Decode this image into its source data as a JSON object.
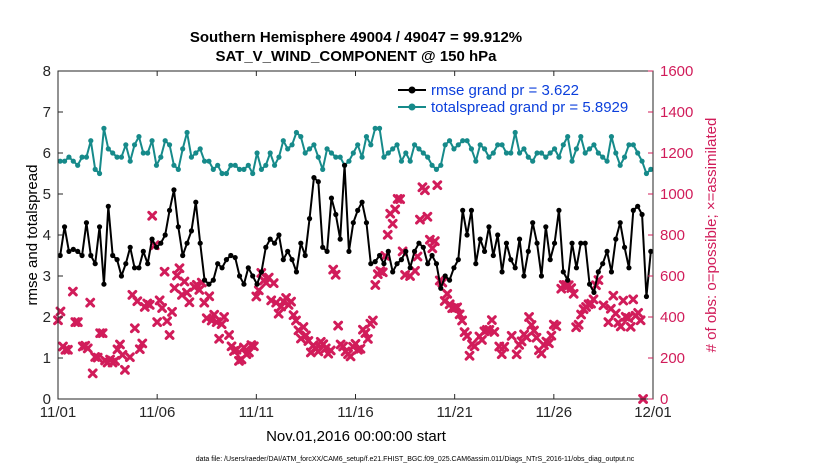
{
  "chart_data": {
    "type": "line",
    "title": [
      "Southern Hemisphere 49004 / 49047 = 99.912%",
      "SAT_V_WIND_COMPONENT @ 150 hPa"
    ],
    "xlabel": "Nov.01,2016 00:00:00 start",
    "ylabel_left": "rmse and totalspread",
    "ylabel_right": "# of obs: o=possible; ×=assimilated",
    "footnote": "data file: /Users/raeder/DAI/ATM_forcXX/CAM6_setup/f.e21.FHIST_BGC.f09_025.CAM6assim.011/Diags_NTrS_2016-11/obs_diag_output.nc",
    "xlim": [
      0,
      30
    ],
    "x_ticks": [
      {
        "pos": 0,
        "label": "11/01"
      },
      {
        "pos": 5,
        "label": "11/06"
      },
      {
        "pos": 10,
        "label": "11/11"
      },
      {
        "pos": 15,
        "label": "11/16"
      },
      {
        "pos": 20,
        "label": "11/21"
      },
      {
        "pos": 25,
        "label": "11/26"
      },
      {
        "pos": 30,
        "label": "12/01"
      }
    ],
    "ylim_left": [
      0,
      8
    ],
    "yticks_left": [
      "0",
      "1",
      "2",
      "3",
      "4",
      "5",
      "6",
      "7",
      "8"
    ],
    "ylim_right": [
      0,
      1600
    ],
    "yticks_right": [
      "0",
      "200",
      "400",
      "600",
      "800",
      "1000",
      "1200",
      "1400",
      "1600"
    ],
    "legend": [
      {
        "label": "rmse grand pr = 3.622",
        "color": "#000000"
      },
      {
        "label": "totalspread grand pr = 5.8929",
        "color": "#168a8a"
      }
    ],
    "colors": {
      "rmse": "#000000",
      "totalspread": "#168a8a",
      "obs": "#d11c5a",
      "legend_text": "#0b3fdc"
    },
    "series_rmse": [
      3.5,
      4.2,
      3.6,
      3.65,
      3.6,
      3.5,
      4.3,
      3.5,
      3.3,
      4.2,
      2.8,
      4.7,
      3.5,
      3.4,
      3.0,
      3.3,
      3.7,
      3.2,
      3.2,
      3.6,
      3.3,
      3.9,
      3.7,
      3.8,
      4.0,
      4.6,
      5.1,
      4.2,
      3.5,
      3.8,
      4.1,
      4.8,
      3.8,
      2.9,
      2.8,
      2.9,
      3.3,
      3.2,
      3.4,
      3.5,
      3.45,
      3.0,
      2.8,
      3.2,
      3.0,
      2.8,
      3.1,
      3.7,
      3.9,
      3.8,
      4.0,
      3.4,
      3.6,
      3.4,
      3.1,
      3.8,
      3.5,
      4.4,
      5.4,
      5.3,
      3.7,
      3.6,
      4.9,
      4.5,
      3.9,
      5.7,
      3.6,
      4.3,
      4.6,
      4.8,
      4.3,
      3.3,
      3.35,
      3.5,
      3.3,
      3.6,
      3.1,
      3.3,
      3.4,
      3.6,
      3.2,
      3.6,
      3.8,
      3.7,
      3.3,
      3.5,
      3.3,
      2.7,
      3.0,
      2.9,
      3.2,
      3.4,
      4.6,
      4.0,
      4.6,
      3.3,
      3.9,
      3.6,
      4.2,
      3.5,
      4.0,
      3.1,
      3.8,
      3.4,
      3.2,
      3.9,
      3.0,
      3.6,
      4.3,
      3.8,
      3.0,
      4.2,
      3.4,
      3.8,
      4.6,
      3.1,
      2.9,
      3.8,
      3.2,
      3.8,
      3.8,
      2.8,
      2.6,
      3.1,
      3.3,
      3.6,
      3.1,
      3.9,
      4.3,
      3.7,
      3.2,
      4.6,
      4.7,
      4.5,
      2.5,
      3.6
    ],
    "series_totalspread": [
      5.8,
      5.8,
      5.9,
      5.8,
      5.7,
      5.9,
      5.9,
      6.3,
      5.6,
      5.5,
      6.6,
      6.1,
      6.0,
      5.9,
      5.9,
      6.2,
      5.8,
      6.2,
      6.4,
      6.0,
      6.0,
      6.3,
      5.7,
      5.9,
      6.3,
      6.2,
      5.7,
      5.6,
      6.1,
      6.5,
      5.9,
      6.0,
      6.1,
      5.8,
      5.8,
      5.6,
      5.7,
      5.5,
      5.5,
      5.7,
      5.7,
      5.6,
      5.6,
      5.7,
      5.5,
      6.0,
      5.6,
      5.7,
      6.0,
      5.7,
      5.9,
      6.3,
      6.1,
      6.2,
      6.5,
      6.4,
      6.0,
      6.1,
      6.2,
      5.9,
      5.6,
      6.1,
      6.0,
      5.9,
      5.9,
      5.7,
      5.8,
      6.0,
      6.2,
      5.9,
      6.4,
      6.2,
      6.6,
      6.6,
      5.9,
      6.0,
      6.1,
      6.2,
      5.8,
      6.0,
      5.8,
      6.2,
      6.1,
      6.0,
      5.9,
      5.7,
      5.6,
      5.7,
      6.2,
      6.3,
      6.1,
      6.2,
      6.3,
      6.3,
      6.1,
      5.8,
      6.2,
      6.1,
      5.9,
      6.0,
      6.2,
      6.2,
      6.0,
      6.0,
      6.5,
      6.0,
      6.1,
      5.9,
      5.8,
      6.0,
      6.0,
      5.9,
      6.0,
      6.1,
      5.9,
      6.2,
      6.4,
      5.8,
      6.1,
      6.4,
      6.0,
      6.1,
      6.2,
      6.0,
      5.9,
      5.8,
      6.4,
      6.0,
      5.7,
      5.9,
      6.2,
      6.2,
      6.0,
      5.8,
      5.5,
      5.6
    ],
    "obs_assimilated": [
      [
        0.0,
        384
      ],
      [
        0.125,
        427
      ],
      [
        0.25,
        256
      ],
      [
        0.375,
        240
      ],
      [
        0.5,
        240
      ],
      [
        0.75,
        524
      ],
      [
        0.875,
        375
      ],
      [
        1.0,
        375
      ],
      [
        1.25,
        256
      ],
      [
        1.375,
        260
      ],
      [
        1.5,
        247
      ],
      [
        1.625,
        470
      ],
      [
        1.75,
        125
      ],
      [
        1.875,
        205
      ],
      [
        2.0,
        202
      ],
      [
        2.125,
        321
      ],
      [
        2.25,
        321
      ],
      [
        2.375,
        188
      ],
      [
        2.5,
        178
      ],
      [
        2.625,
        192
      ],
      [
        2.75,
        178
      ],
      [
        2.875,
        186
      ],
      [
        3.0,
        242
      ],
      [
        3.125,
        266
      ],
      [
        3.25,
        215
      ],
      [
        3.375,
        142
      ],
      [
        3.625,
        204
      ],
      [
        3.75,
        508
      ],
      [
        3.875,
        345
      ],
      [
        4.0,
        477
      ],
      [
        4.125,
        243
      ],
      [
        4.25,
        271
      ],
      [
        4.375,
        449
      ],
      [
        4.5,
        466
      ],
      [
        4.625,
        459
      ],
      [
        4.75,
        894
      ],
      [
        4.875,
        750
      ],
      [
        5.0,
        375
      ],
      [
        5.125,
        481
      ],
      [
        5.25,
        444
      ],
      [
        5.375,
        621
      ],
      [
        5.5,
        380
      ],
      [
        5.625,
        312
      ],
      [
        5.75,
        425
      ],
      [
        5.875,
        541
      ],
      [
        6.0,
        602
      ],
      [
        6.125,
        638
      ],
      [
        6.25,
        508
      ],
      [
        6.375,
        573
      ],
      [
        6.5,
        519
      ],
      [
        6.625,
        472
      ],
      [
        6.875,
        547
      ],
      [
        7.0,
        557
      ],
      [
        7.125,
        532
      ],
      [
        7.25,
        568
      ],
      [
        7.375,
        470
      ],
      [
        7.5,
        394
      ],
      [
        7.625,
        501
      ],
      [
        7.75,
        383
      ],
      [
        7.875,
        411
      ],
      [
        8.0,
        375
      ],
      [
        8.125,
        294
      ],
      [
        8.25,
        365
      ],
      [
        8.375,
        400
      ],
      [
        8.625,
        312
      ],
      [
        8.75,
        257
      ],
      [
        8.875,
        234
      ],
      [
        9.0,
        240
      ],
      [
        9.125,
        186
      ],
      [
        9.25,
        193
      ],
      [
        9.375,
        251
      ],
      [
        9.5,
        219
      ],
      [
        9.625,
        227
      ],
      [
        9.75,
        263
      ],
      [
        9.875,
        257
      ],
      [
        10.0,
        500
      ],
      [
        10.125,
        530
      ],
      [
        10.25,
        615
      ],
      [
        10.375,
        578
      ],
      [
        10.5,
        567
      ],
      [
        10.625,
        592
      ],
      [
        10.75,
        481
      ],
      [
        10.875,
        565
      ],
      [
        11.0,
        470
      ],
      [
        11.125,
        416
      ],
      [
        11.25,
        451
      ],
      [
        11.375,
        475
      ],
      [
        11.5,
        493
      ],
      [
        11.625,
        459
      ],
      [
        11.75,
        475
      ],
      [
        11.875,
        409
      ],
      [
        12.0,
        383
      ],
      [
        12.125,
        335
      ],
      [
        12.25,
        295
      ],
      [
        12.375,
        351
      ],
      [
        12.5,
        310
      ],
      [
        12.625,
        283
      ],
      [
        12.75,
        227
      ],
      [
        12.875,
        262
      ],
      [
        13.0,
        245
      ],
      [
        13.125,
        232
      ],
      [
        13.25,
        279
      ],
      [
        13.375,
        267
      ],
      [
        13.5,
        247
      ],
      [
        13.625,
        221
      ],
      [
        13.75,
        237
      ],
      [
        13.875,
        631
      ],
      [
        14.0,
        606
      ],
      [
        14.125,
        358
      ],
      [
        14.25,
        266
      ],
      [
        14.375,
        256
      ],
      [
        14.5,
        232
      ],
      [
        14.625,
        219
      ],
      [
        14.75,
        208
      ],
      [
        14.875,
        255
      ],
      [
        15.0,
        269
      ],
      [
        15.125,
        240
      ],
      [
        15.25,
        245
      ],
      [
        15.375,
        338
      ],
      [
        15.5,
        322
      ],
      [
        15.625,
        293
      ],
      [
        15.75,
        367
      ],
      [
        15.875,
        383
      ],
      [
        16.0,
        556
      ],
      [
        16.125,
        609
      ],
      [
        16.25,
        624
      ],
      [
        16.375,
        618
      ],
      [
        16.5,
        698
      ],
      [
        16.625,
        801
      ],
      [
        16.75,
        904
      ],
      [
        16.875,
        855
      ],
      [
        17.0,
        925
      ],
      [
        17.125,
        976
      ],
      [
        17.25,
        975
      ],
      [
        17.375,
        720
      ],
      [
        17.5,
        605
      ],
      [
        17.75,
        600
      ],
      [
        18.0,
        625
      ],
      [
        18.125,
        695
      ],
      [
        18.25,
        875
      ],
      [
        18.375,
        1033
      ],
      [
        18.5,
        1018
      ],
      [
        18.625,
        889
      ],
      [
        18.75,
        777
      ],
      [
        18.875,
        735
      ],
      [
        19.0,
        770
      ],
      [
        19.125,
        1043
      ],
      [
        19.25,
        578
      ],
      [
        19.375,
        568
      ],
      [
        19.5,
        478
      ],
      [
        19.625,
        513
      ],
      [
        19.75,
        462
      ],
      [
        19.875,
        443
      ],
      [
        20.0,
        444
      ],
      [
        20.125,
        447
      ],
      [
        20.25,
        413
      ],
      [
        20.375,
        383
      ],
      [
        20.5,
        326
      ],
      [
        20.625,
        307
      ],
      [
        20.75,
        211
      ],
      [
        20.875,
        267
      ],
      [
        21.0,
        257
      ],
      [
        21.25,
        305
      ],
      [
        21.375,
        288
      ],
      [
        21.5,
        330
      ],
      [
        21.625,
        337
      ],
      [
        21.75,
        337
      ],
      [
        21.875,
        385
      ],
      [
        22.0,
        327
      ],
      [
        22.25,
        256
      ],
      [
        22.375,
        219
      ],
      [
        22.5,
        255
      ],
      [
        22.875,
        308
      ],
      [
        23.125,
        218
      ],
      [
        23.25,
        264
      ],
      [
        23.375,
        281
      ],
      [
        23.5,
        315
      ],
      [
        23.625,
        301
      ],
      [
        23.75,
        400
      ],
      [
        23.875,
        361
      ],
      [
        24.0,
        334
      ],
      [
        24.125,
        299
      ],
      [
        24.25,
        238
      ],
      [
        24.375,
        222
      ],
      [
        24.5,
        263
      ],
      [
        24.625,
        280
      ],
      [
        24.75,
        272
      ],
      [
        24.875,
        309
      ],
      [
        25.0,
        363
      ],
      [
        25.125,
        355
      ],
      [
        25.375,
        538
      ],
      [
        25.5,
        556
      ],
      [
        25.625,
        556
      ],
      [
        25.75,
        555
      ],
      [
        25.875,
        541
      ],
      [
        26.0,
        513
      ],
      [
        26.125,
        350
      ],
      [
        26.25,
        362
      ],
      [
        26.375,
        412
      ],
      [
        26.5,
        438
      ],
      [
        26.625,
        449
      ],
      [
        26.75,
        462
      ],
      [
        26.875,
        465
      ],
      [
        27.0,
        486
      ],
      [
        27.125,
        555
      ],
      [
        27.25,
        580
      ],
      [
        27.5,
        457
      ],
      [
        27.75,
        375
      ],
      [
        27.875,
        440
      ],
      [
        28.0,
        504
      ],
      [
        28.125,
        417
      ],
      [
        28.25,
        372
      ],
      [
        28.375,
        354
      ],
      [
        28.5,
        480
      ],
      [
        28.625,
        401
      ],
      [
        28.75,
        395
      ],
      [
        28.875,
        352
      ],
      [
        29.0,
        486
      ],
      [
        29.125,
        406
      ],
      [
        29.25,
        420
      ],
      [
        29.375,
        384
      ],
      [
        29.5,
        0
      ]
    ]
  }
}
